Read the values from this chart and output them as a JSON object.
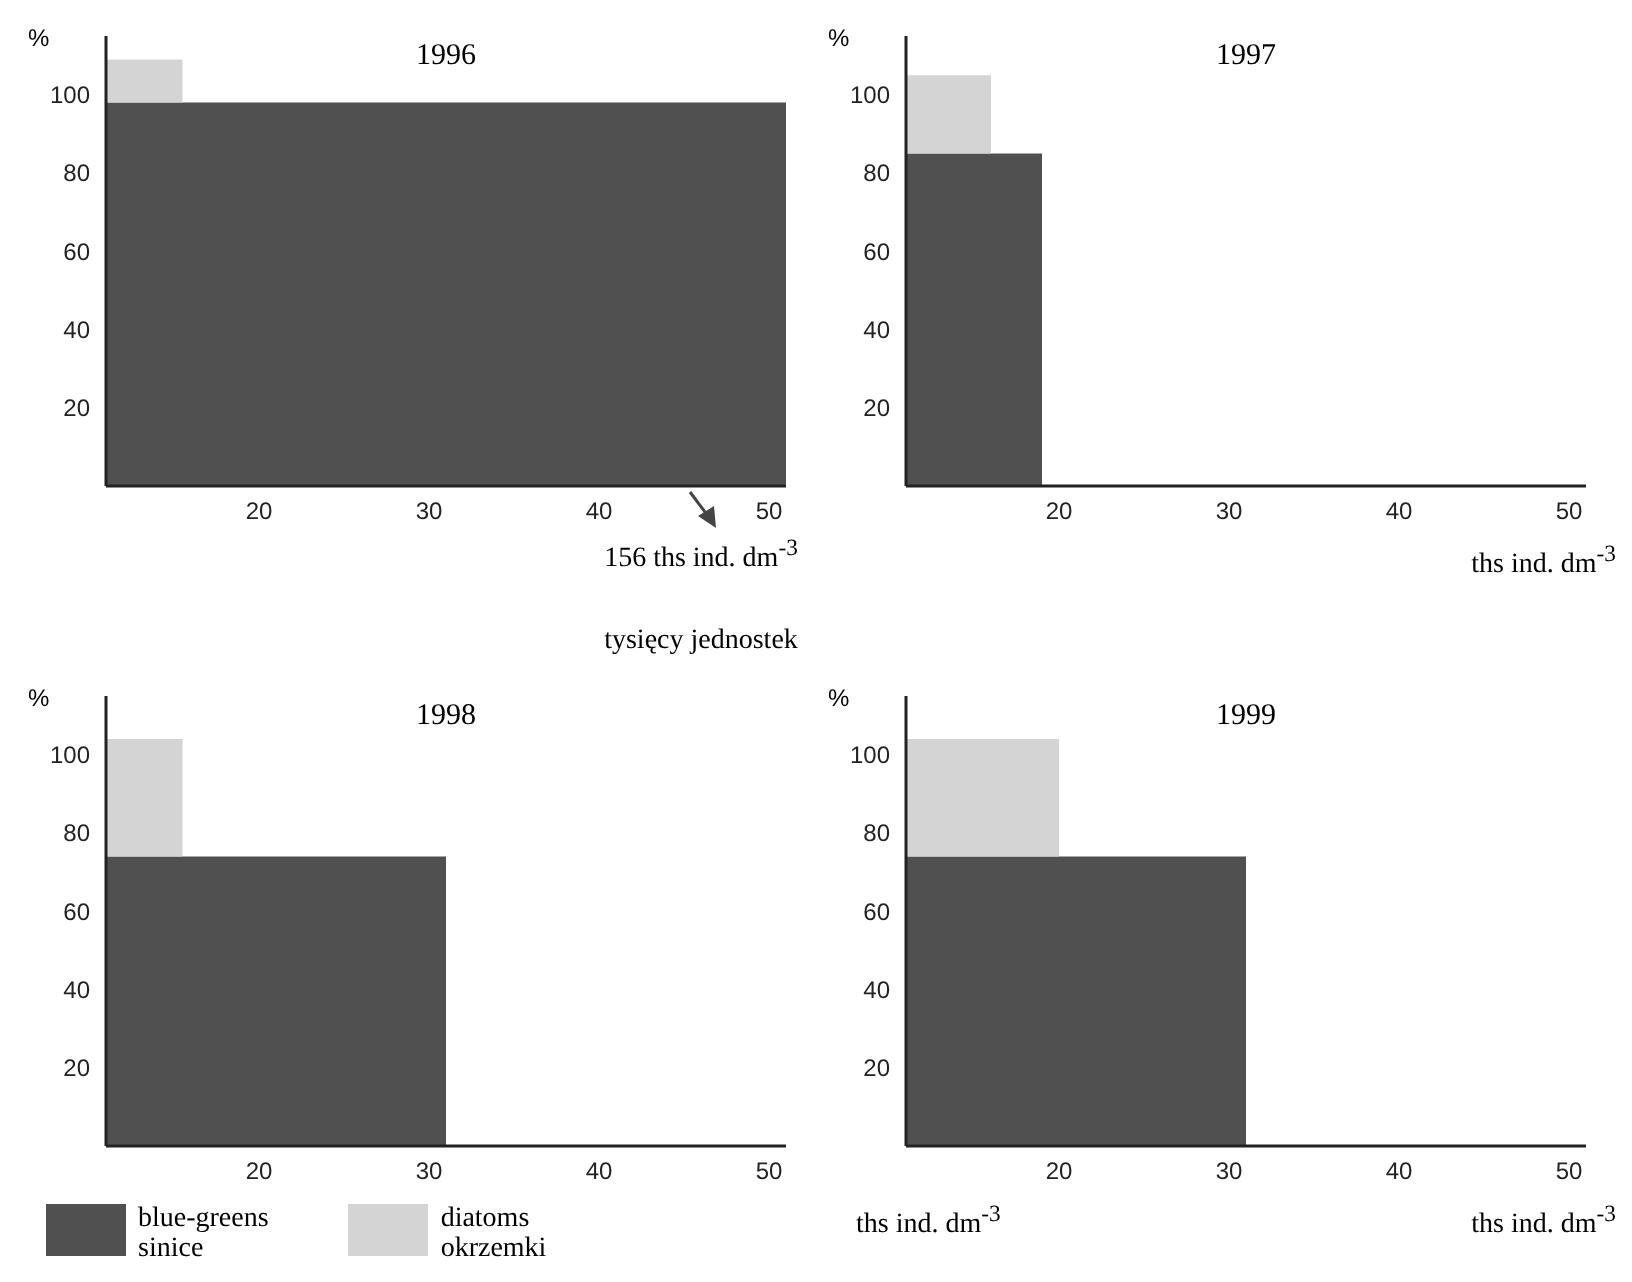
{
  "chart_data": [
    {
      "type": "area",
      "stacked": true,
      "title": "1996",
      "ylabel": "%",
      "xlim": [
        11,
        51
      ],
      "xticks": [
        20,
        30,
        40,
        50
      ],
      "ylim": [
        0,
        115
      ],
      "yticks": [
        20,
        40,
        60,
        80,
        100
      ],
      "legend": false,
      "series": [
        {
          "color": "#505050",
          "x": [
            11,
            51
          ],
          "values": [
            98,
            98
          ]
        },
        {
          "color": "#d4d4d4",
          "x": [
            11,
            15.5
          ],
          "values": [
            11,
            11
          ]
        }
      ],
      "annotations": [
        {
          "text": "156 ths ind. dm$^{-3}$",
          "x": 46,
          "y": 0
        },
        "tysięcy jednostek"
      ]
    },
    {
      "type": "area",
      "stacked": true,
      "title": "1997",
      "ylabel": "%",
      "xlabel": "ths ind. dm$^{-3}$",
      "xlim": [
        11,
        51
      ],
      "xticks": [
        20,
        30,
        40,
        50
      ],
      "ylim": [
        0,
        115
      ],
      "yticks": [
        20,
        40,
        60,
        80,
        100
      ],
      "legend": false,
      "series": [
        {
          "color": "#505050",
          "x": [
            11,
            19
          ],
          "values": [
            85,
            85
          ]
        },
        {
          "color": "#d4d4d4",
          "x": [
            11,
            16
          ],
          "values": [
            20,
            20
          ]
        }
      ]
    },
    {
      "type": "area",
      "stacked": true,
      "title": "1998",
      "ylabel": "%",
      "xlim": [
        11,
        51
      ],
      "xticks": [
        20,
        30,
        40,
        50
      ],
      "ylim": [
        0,
        115
      ],
      "yticks": [
        20,
        40,
        60,
        80,
        100
      ],
      "legend": "bottom",
      "series": [
        {
          "name": "blue-greens\nsinice",
          "color": "#505050",
          "x": [
            11,
            31
          ],
          "values": [
            74,
            74
          ]
        },
        {
          "name": "diatoms\nokrzemki",
          "color": "#d4d4d4",
          "x": [
            11,
            15.5
          ],
          "values": [
            30,
            30
          ]
        }
      ]
    },
    {
      "type": "area",
      "stacked": true,
      "title": "1999",
      "ylabel": "%",
      "xlabel": "ths ind. dm$^{-3}$",
      "xlim": [
        11,
        51
      ],
      "xticks": [
        20,
        30,
        40,
        50
      ],
      "ylim": [
        0,
        115
      ],
      "yticks": [
        20,
        40,
        60,
        80,
        100
      ],
      "legend": false,
      "series": [
        {
          "color": "#505050",
          "x": [
            11,
            31
          ],
          "values": [
            74,
            74
          ]
        },
        {
          "color": "#d4d4d4",
          "x": [
            11,
            20
          ],
          "values": [
            30,
            30
          ]
        }
      ],
      "annotations": [
        "ths ind. dm$^{-3}$"
      ]
    }
  ]
}
